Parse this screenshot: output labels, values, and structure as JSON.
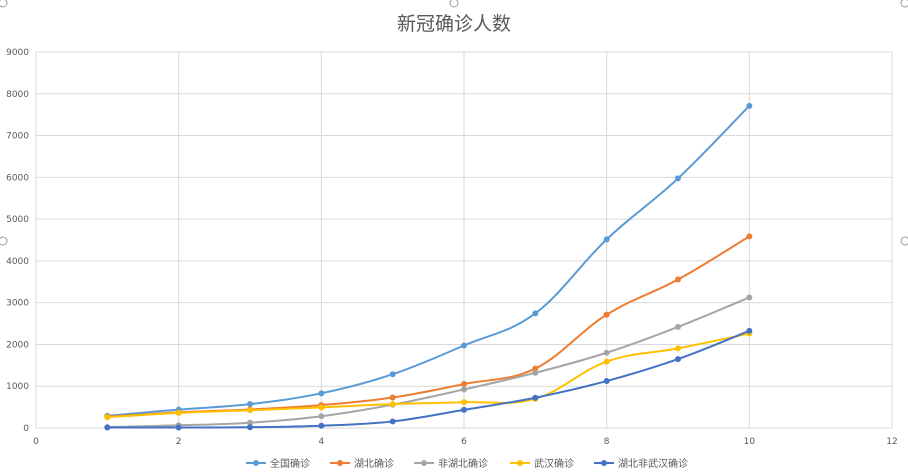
{
  "chart_data": {
    "type": "line",
    "title": "新冠确诊人数",
    "xlabel": "",
    "ylabel": "",
    "xlim": [
      0,
      12
    ],
    "ylim": [
      0,
      9000
    ],
    "x_ticks": [
      "0",
      "2",
      "4",
      "6",
      "8",
      "10",
      "12"
    ],
    "y_ticks": [
      "0",
      "1000",
      "2000",
      "3000",
      "4000",
      "5000",
      "6000",
      "7000",
      "8000",
      "9000"
    ],
    "grid": true,
    "legend_position": "bottom",
    "x": [
      1,
      2,
      3,
      4,
      5,
      6,
      7,
      8,
      9,
      10
    ],
    "series": [
      {
        "name": "全国确诊",
        "color": "#5B9BD5",
        "values": [
          291,
          440,
          571,
          830,
          1287,
          1975,
          2744,
          4515,
          5974,
          7711
        ]
      },
      {
        "name": "湖北确诊",
        "color": "#ED7D31",
        "values": [
          270,
          375,
          444,
          549,
          729,
          1052,
          1423,
          2714,
          3554,
          4586
        ]
      },
      {
        "name": "非湖北确诊",
        "color": "#A5A5A5",
        "values": [
          21,
          65,
          127,
          281,
          558,
          923,
          1321,
          1801,
          2420,
          3125
        ]
      },
      {
        "name": "武汉确诊",
        "color": "#FFC000",
        "values": [
          258,
          363,
          425,
          495,
          572,
          618,
          698,
          1590,
          1905,
          2261
        ]
      },
      {
        "name": "湖北非武汉确诊",
        "color": "#4472C4",
        "values": [
          12,
          12,
          19,
          54,
          157,
          434,
          725,
          1124,
          1649,
          2325
        ]
      }
    ]
  }
}
